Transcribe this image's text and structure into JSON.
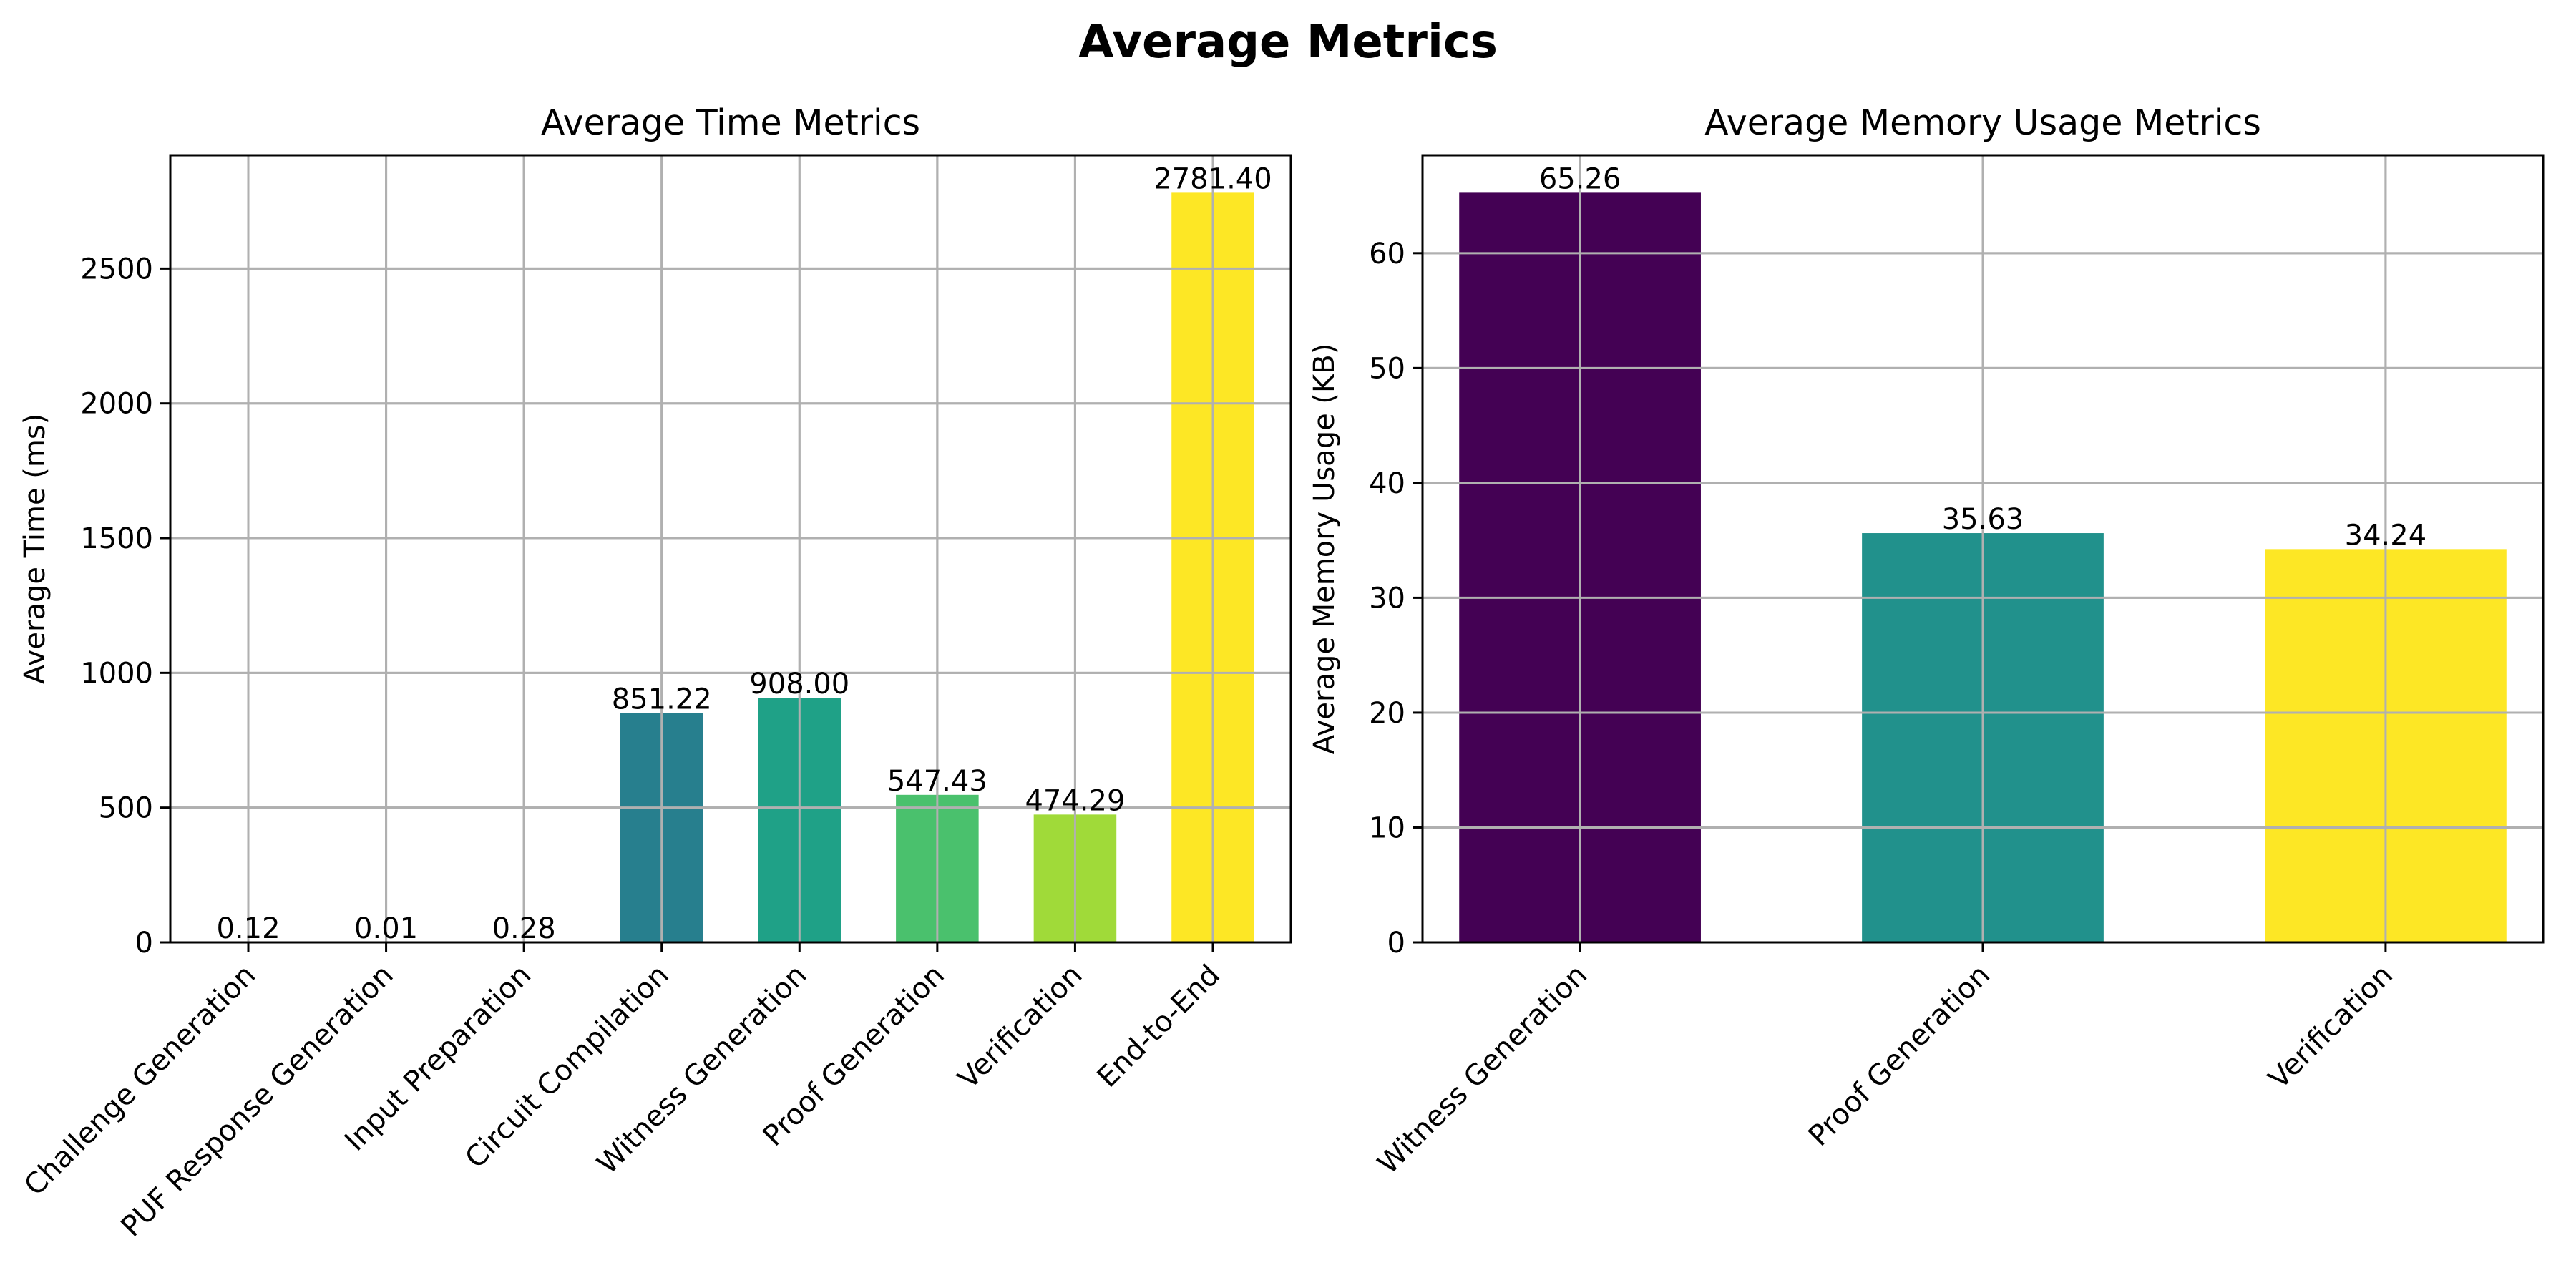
{
  "figure": {
    "title": "Average Metrics"
  },
  "chart_data": [
    {
      "type": "bar",
      "title": "Average Time Metrics",
      "xlabel": "",
      "ylabel": "Average Time (ms)",
      "categories": [
        "Challenge Generation",
        "PUF Response Generation",
        "Input Preparation",
        "Circuit Compilation",
        "Witness Generation",
        "Proof Generation",
        "Verification",
        "End-to-End"
      ],
      "values": [
        0.12,
        0.01,
        0.28,
        851.22,
        908.0,
        547.43,
        474.29,
        2781.4
      ],
      "value_labels": [
        "0.12",
        "0.01",
        "0.28",
        "851.22",
        "908.00",
        "547.43",
        "474.29",
        "2781.40"
      ],
      "colors": [
        "#440154",
        "#46327e",
        "#365c8d",
        "#277f8e",
        "#1fa187",
        "#4ac16d",
        "#a0da39",
        "#fde725"
      ],
      "ylim": [
        0,
        2920.47
      ],
      "yticks": [
        0,
        500,
        1000,
        1500,
        2000,
        2500
      ],
      "grid": true,
      "legend": "none"
    },
    {
      "type": "bar",
      "title": "Average Memory Usage Metrics",
      "xlabel": "",
      "ylabel": "Average Memory Usage (KB)",
      "categories": [
        "Witness Generation",
        "Proof Generation",
        "Verification"
      ],
      "values": [
        65.26,
        35.63,
        34.24
      ],
      "value_labels": [
        "65.26",
        "35.63",
        "34.24"
      ],
      "colors": [
        "#440154",
        "#21918c",
        "#fde725"
      ],
      "ylim": [
        0,
        68.523
      ],
      "yticks": [
        0,
        10,
        20,
        30,
        40,
        50,
        60
      ],
      "grid": true,
      "legend": "none"
    }
  ]
}
